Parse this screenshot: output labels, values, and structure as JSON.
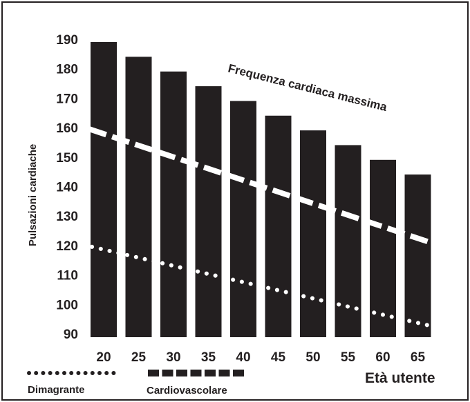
{
  "chart_data": {
    "type": "bar",
    "title": "",
    "xlabel": "Età utente",
    "ylabel": "Pulsazioni cardiache",
    "categories": [
      "20",
      "25",
      "30",
      "35",
      "40",
      "45",
      "50",
      "55",
      "60",
      "65"
    ],
    "ylim": [
      90,
      190
    ],
    "yticks": [
      "90",
      "100",
      "110",
      "120",
      "130",
      "140",
      "150",
      "160",
      "170",
      "180",
      "190"
    ],
    "series": [
      {
        "name": "Frequenza cardiaca massima",
        "kind": "bar",
        "values": [
          190,
          185,
          180,
          175,
          170,
          165,
          160,
          155,
          150,
          145
        ]
      },
      {
        "name": "Cardiovascolare",
        "kind": "line",
        "style": "dashed",
        "start": [
          20,
          160
        ],
        "end": [
          65,
          125
        ]
      },
      {
        "name": "Dimagrante",
        "kind": "line",
        "style": "dotted",
        "start": [
          20,
          120
        ],
        "end": [
          65,
          95
        ]
      }
    ],
    "bar_color": "#231f20",
    "line_color": "#ffffff",
    "legend": {
      "placement": "bottom-left",
      "items": [
        "Dimagrante",
        "Cardiovascolare"
      ]
    }
  }
}
